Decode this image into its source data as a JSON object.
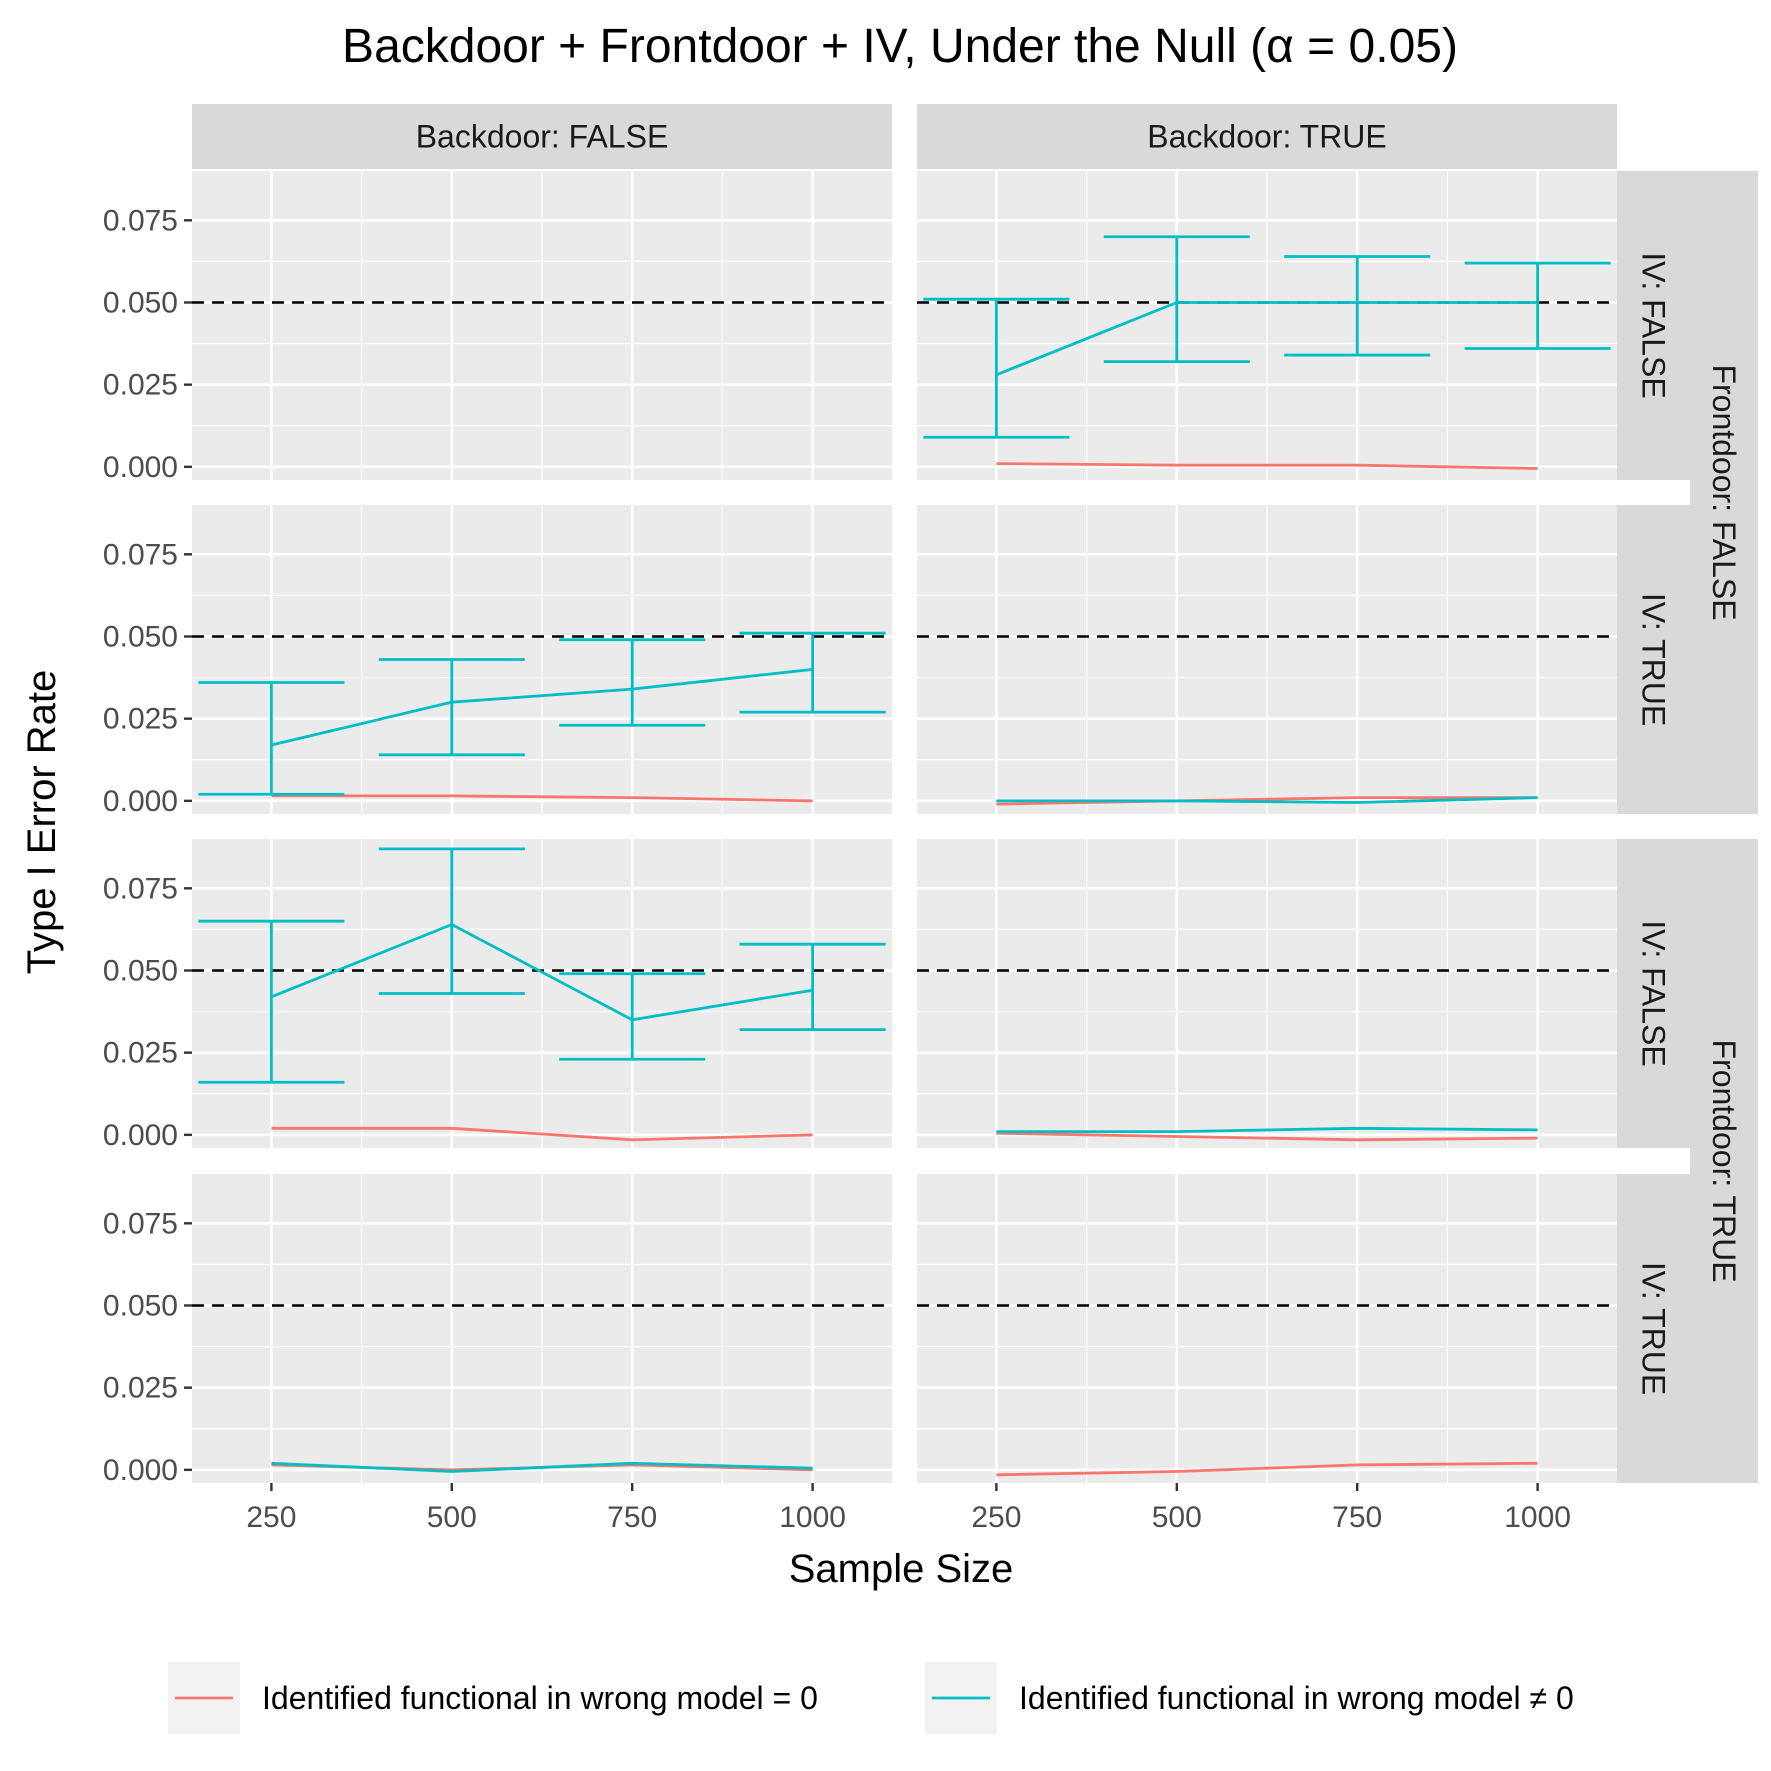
{
  "chart_data": {
    "type": "line",
    "title": "Backdoor + Frontdoor + IV, Under the Null (α = 0.05)",
    "xlabel": "Sample Size",
    "ylabel": "Type I Error Rate",
    "x_ticks": [
      250,
      500,
      750,
      1000
    ],
    "y_ticks": [
      "0.000",
      "0.025",
      "0.050",
      "0.075"
    ],
    "xlim": [
      140,
      1110
    ],
    "ylim": [
      -0.004,
      0.09
    ],
    "reference_line": 0.05,
    "grid": true,
    "legend_position": "bottom",
    "column_facets": [
      "Backdoor: FALSE",
      "Backdoor: TRUE"
    ],
    "row_facets": [
      "IV: FALSE",
      "IV: TRUE",
      "IV: FALSE",
      "IV: TRUE"
    ],
    "outer_row_facets": [
      "Frontdoor: FALSE",
      "Frontdoor: TRUE"
    ],
    "legend": [
      {
        "label": "Identified functional in wrong model = 0",
        "color": "#F8766D"
      },
      {
        "label": "Identified functional in wrong model ≠ 0",
        "color": "#00BFC4"
      }
    ],
    "panels": [
      {
        "row": 0,
        "col": 0,
        "series": []
      },
      {
        "row": 0,
        "col": 1,
        "series": [
          {
            "key": "zero",
            "x": [
              250,
              500,
              750,
              1000
            ],
            "y": [
              0.001,
              0.0005,
              0.0005,
              -0.0005
            ]
          },
          {
            "key": "nonzero",
            "x": [
              250,
              500,
              750,
              1000
            ],
            "y": [
              0.028,
              0.05,
              0.05,
              0.05
            ],
            "lower": [
              0.009,
              0.032,
              0.034,
              0.036
            ],
            "upper": [
              0.051,
              0.07,
              0.064,
              0.062
            ]
          }
        ]
      },
      {
        "row": 1,
        "col": 0,
        "series": [
          {
            "key": "zero",
            "x": [
              250,
              500,
              750,
              1000
            ],
            "y": [
              0.0015,
              0.0015,
              0.001,
              0.0
            ]
          },
          {
            "key": "nonzero",
            "x": [
              250,
              500,
              750,
              1000
            ],
            "y": [
              0.017,
              0.03,
              0.034,
              0.04
            ],
            "lower": [
              0.002,
              0.014,
              0.023,
              0.027
            ],
            "upper": [
              0.036,
              0.043,
              0.049,
              0.051
            ]
          }
        ]
      },
      {
        "row": 1,
        "col": 1,
        "series": [
          {
            "key": "zero",
            "x": [
              250,
              500,
              750,
              1000
            ],
            "y": [
              -0.001,
              0.0,
              0.001,
              0.001
            ]
          },
          {
            "key": "nonzero",
            "x": [
              250,
              500,
              750,
              1000
            ],
            "y": [
              0.0,
              0.0,
              -0.0005,
              0.001
            ]
          }
        ]
      },
      {
        "row": 2,
        "col": 0,
        "series": [
          {
            "key": "zero",
            "x": [
              250,
              500,
              750,
              1000
            ],
            "y": [
              0.002,
              0.002,
              -0.0015,
              0.0
            ]
          },
          {
            "key": "nonzero",
            "x": [
              250,
              500,
              750,
              1000
            ],
            "y": [
              0.042,
              0.064,
              0.035,
              0.044
            ],
            "lower": [
              0.016,
              0.043,
              0.023,
              0.032
            ],
            "upper": [
              0.065,
              0.087,
              0.049,
              0.058
            ]
          }
        ]
      },
      {
        "row": 2,
        "col": 1,
        "series": [
          {
            "key": "zero",
            "x": [
              250,
              500,
              750,
              1000
            ],
            "y": [
              0.0005,
              -0.0005,
              -0.0015,
              -0.001
            ]
          },
          {
            "key": "nonzero",
            "x": [
              250,
              500,
              750,
              1000
            ],
            "y": [
              0.001,
              0.001,
              0.002,
              0.0015
            ]
          }
        ]
      },
      {
        "row": 3,
        "col": 0,
        "series": [
          {
            "key": "zero",
            "x": [
              250,
              500,
              750,
              1000
            ],
            "y": [
              0.0015,
              0.0,
              0.0015,
              0.0
            ]
          },
          {
            "key": "nonzero",
            "x": [
              250,
              500,
              750,
              1000
            ],
            "y": [
              0.002,
              -0.0005,
              0.002,
              0.0005
            ]
          }
        ]
      },
      {
        "row": 3,
        "col": 1,
        "series": [
          {
            "key": "zero",
            "x": [
              250,
              500,
              750,
              1000
            ],
            "y": [
              -0.0015,
              -0.0005,
              0.0015,
              0.002
            ]
          }
        ]
      }
    ]
  }
}
